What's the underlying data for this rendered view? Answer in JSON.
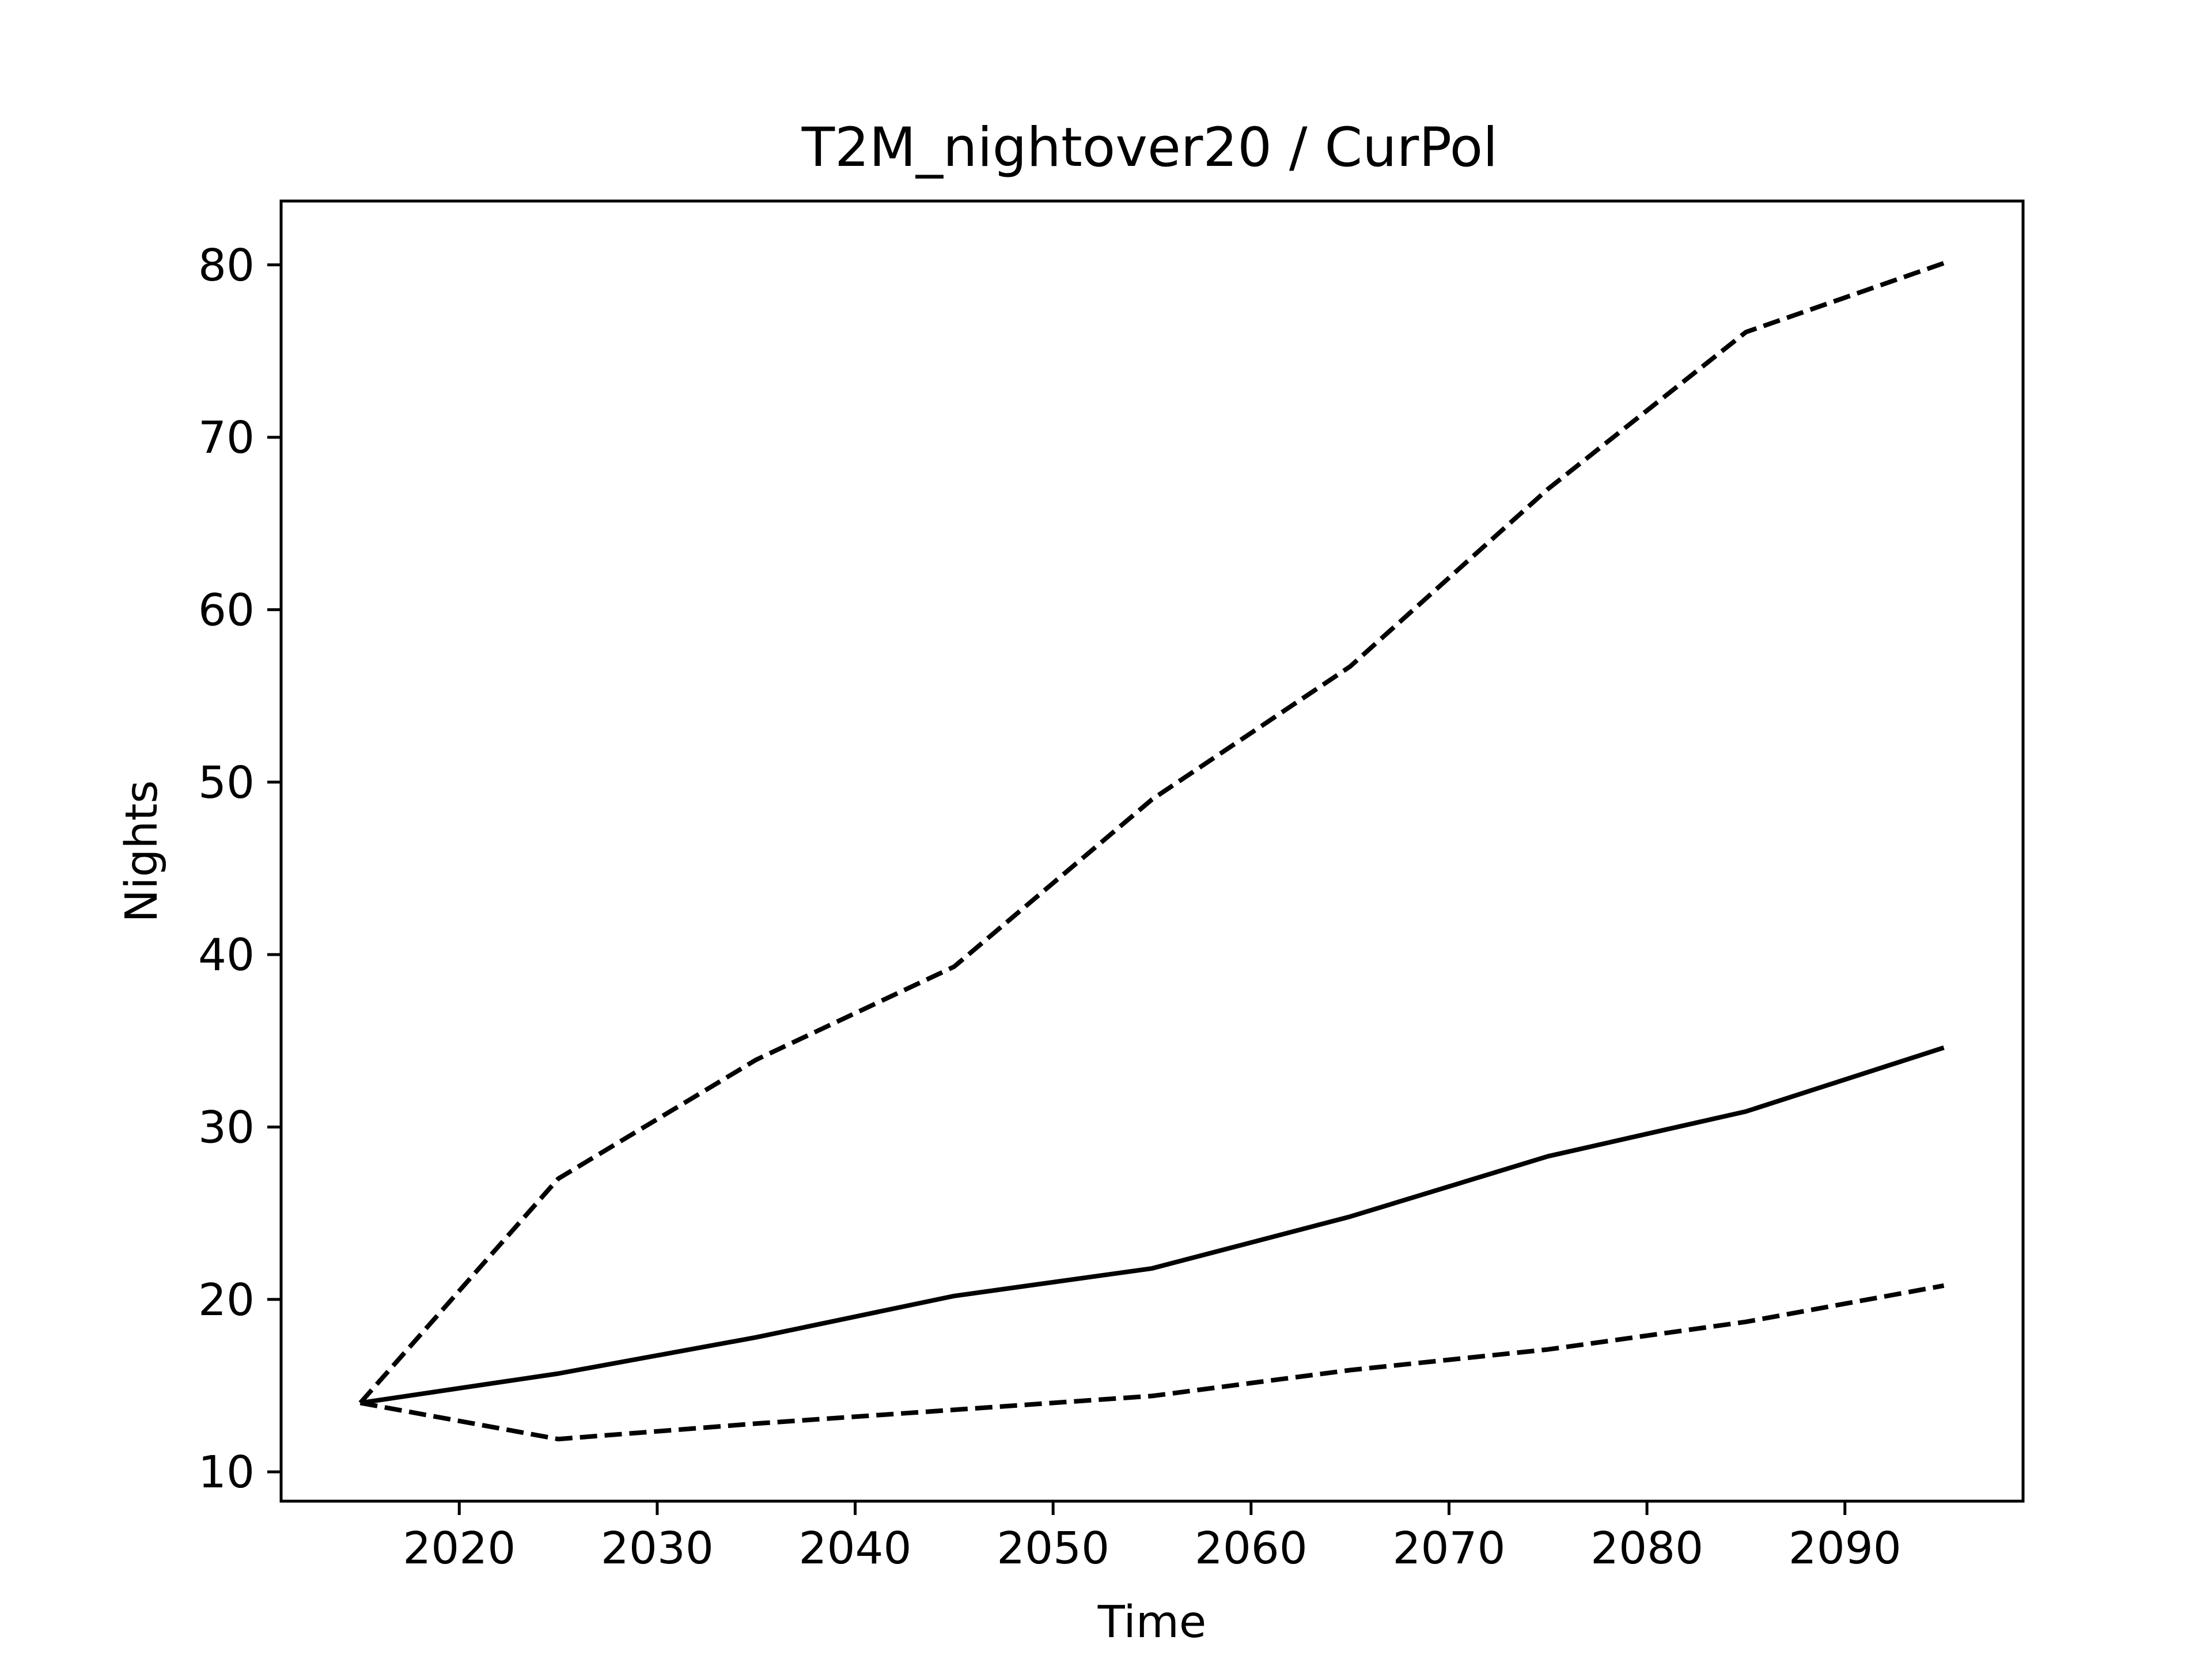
{
  "chart_data": {
    "type": "line",
    "title": "T2M_nightover20 / CurPol",
    "xlabel": "Time",
    "ylabel": "Nights",
    "xlim": [
      2011,
      2099
    ],
    "ylim": [
      8.3,
      83.7
    ],
    "xticks": [
      2020,
      2030,
      2040,
      2050,
      2060,
      2070,
      2080,
      2090
    ],
    "yticks": [
      10,
      20,
      30,
      40,
      50,
      60,
      70,
      80
    ],
    "grid": false,
    "legend": "none",
    "x": [
      2015,
      2025,
      2035,
      2045,
      2055,
      2065,
      2075,
      2085,
      2095
    ],
    "series": [
      {
        "style": "solid",
        "color": "#000000",
        "values": [
          14,
          15.7,
          17.8,
          20.2,
          21.8,
          24.8,
          28.3,
          30.9,
          34.6
        ]
      },
      {
        "style": "dashed",
        "color": "#000000",
        "values": [
          14,
          27.0,
          33.9,
          39.3,
          49.0,
          56.7,
          67.0,
          76.1,
          80.1
        ]
      },
      {
        "style": "dashed",
        "color": "#000000",
        "values": [
          14,
          11.9,
          12.8,
          13.6,
          14.4,
          15.9,
          17.1,
          18.7,
          20.8
        ]
      }
    ]
  }
}
